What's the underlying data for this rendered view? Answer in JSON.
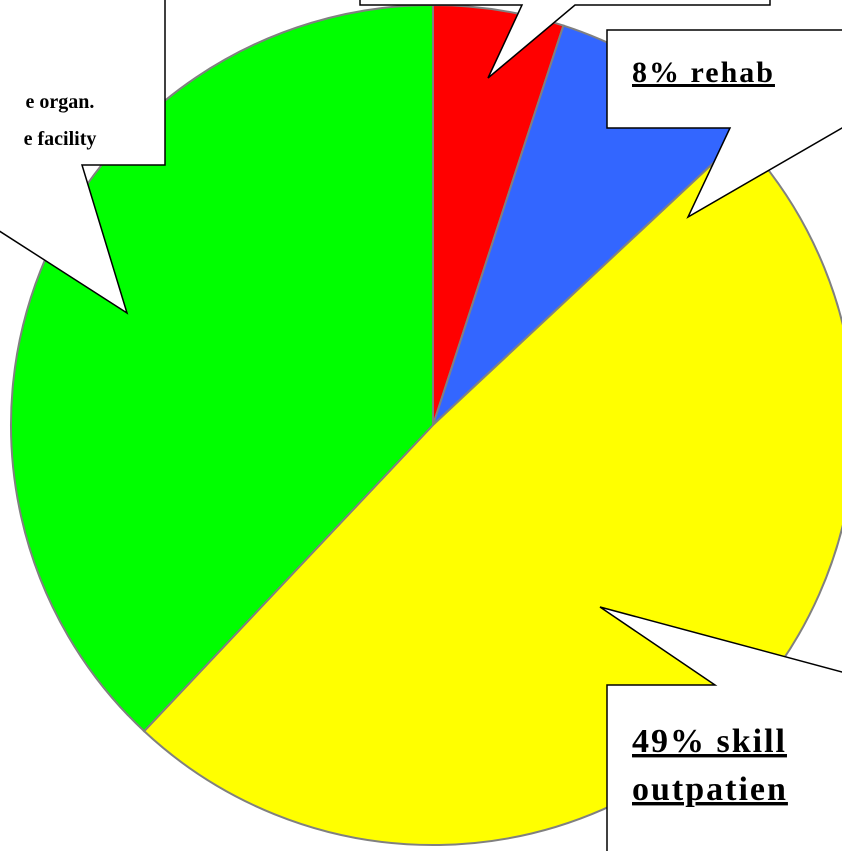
{
  "chart_data": {
    "type": "pie",
    "values": [
      5,
      8,
      49,
      38
    ],
    "colors": [
      "#ff0000",
      "#3366ff",
      "#ffff00",
      "#00ff00"
    ],
    "labels": [
      null,
      [
        "8% rehab"
      ],
      [
        "49% skill",
        "outpatien"
      ],
      [
        "e organ.",
        "e facility"
      ]
    ]
  }
}
